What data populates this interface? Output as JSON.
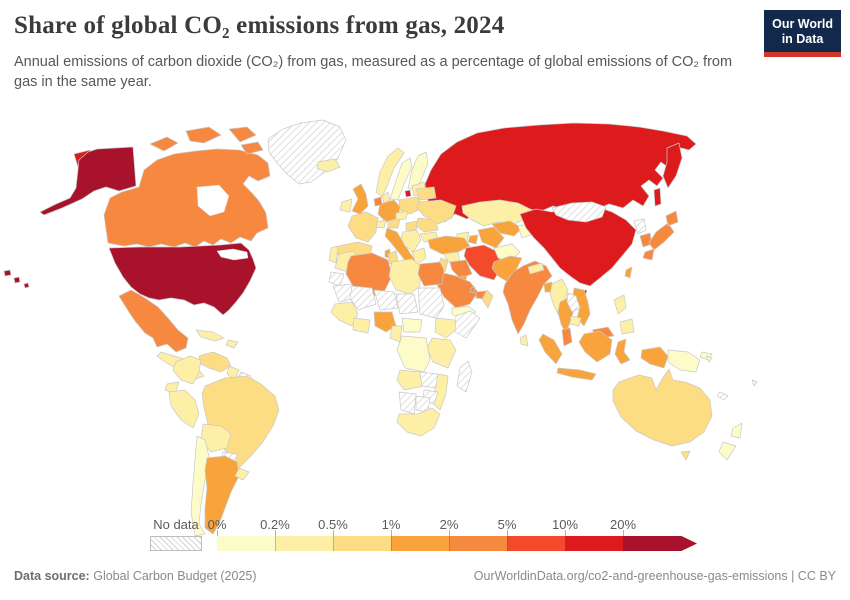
{
  "header": {
    "title": "Share of global CO₂ emissions from gas, 2024",
    "subtitle": "Annual emissions of carbon dioxide (CO₂) from gas, measured as a percentage of global emissions of CO₂ from gas in the same year.",
    "logo": {
      "line1": "Our World",
      "line2": "in Data"
    }
  },
  "legend": {
    "no_data_label": "No data",
    "tick_labels": [
      "0%",
      "0.2%",
      "0.5%",
      "1%",
      "2%",
      "5%",
      "10%",
      "20%"
    ]
  },
  "footer": {
    "source_label": "Data source:",
    "source_value": "Global Carbon Budget (2025)",
    "attribution": "OurWorldinData.org/co2-and-greenhouse-gas-emissions | CC BY"
  },
  "colors": {
    "logo_navy": "#12294b",
    "logo_red": "#d1352b",
    "title_text": "#3b3b3b",
    "subtitle_text": "#575757",
    "legend_text": "#5b5b5b",
    "footer_text": "#8a8a8a",
    "map_border": "#c9c9c9"
  },
  "chart_data": {
    "type": "choropleth-map",
    "title": "Share of global CO₂ emissions from gas, 2024",
    "year": 2024,
    "unit": "share of global CO₂ emissions from gas (%)",
    "legend_orientation": "horizontal",
    "bin_edges_labels": [
      "0%",
      "0.2%",
      "0.5%",
      "1%",
      "2%",
      "5%",
      "10%",
      "20%"
    ],
    "bin_ranges": [
      "0-0.2%",
      "0.2-0.5%",
      "0.5-1%",
      "1-2%",
      "2-5%",
      "5-10%",
      "10-20%",
      "20%+"
    ],
    "bin_colors": [
      "#fdfbc8",
      "#fdefa5",
      "#fddd83",
      "#f9a33c",
      "#f78840",
      "#f24a2b",
      "#de1b1c",
      "#a9122b"
    ],
    "no_data": {
      "label": "No data",
      "style": "hatched"
    },
    "country_bins": {
      "united-states": 7,
      "russia": 6,
      "china": 6,
      "iran": 5,
      "canada": 4,
      "mexico": 4,
      "saudi-arabia": 4,
      "algeria": 4,
      "egypt": 4,
      "iraq": 4,
      "uae": 4,
      "qatar": 4,
      "india": 4,
      "japan": 4,
      "south-korea": 4,
      "malaysia": 4,
      "netherlands": 4,
      "united-kingdom": 3,
      "germany": 3,
      "italy": 3,
      "turkey": 3,
      "argentina": 3,
      "nigeria": 3,
      "pakistan": 3,
      "thailand": 3,
      "vietnam": 3,
      "bangladesh": 3,
      "azerbaijan": 3,
      "uzbekistan": 3,
      "turkmenistan": 3,
      "kuwait": 3,
      "indonesia": 3,
      "taiwan": 3,
      "france": 2,
      "spain": 2,
      "poland": 2,
      "ukraine": 2,
      "belarus": 2,
      "romania": 2,
      "hungary": 2,
      "brazil": 2,
      "venezuela": 2,
      "australia": 2,
      "oman": 2,
      "tunisia": 2,
      "austria": 2,
      "israel-jordan": 2,
      "norway": 1,
      "ireland": 1,
      "portugal": 1,
      "denmark": 1,
      "baltics": 1,
      "czechia": 1,
      "switzerland": 1,
      "balkans": 1,
      "greece": 1,
      "bulgaria": 1,
      "iceland": 1,
      "colombia": 1,
      "peru": 1,
      "ecuador": 1,
      "bolivia": 1,
      "uruguay": 1,
      "cuba": 1,
      "hispaniola": 1,
      "central-america": 1,
      "myanmar": 1,
      "philippines": 1,
      "cambodia": 1,
      "sri-lanka": 1,
      "morocco": 1,
      "libya": 1,
      "west-africa": 1,
      "ghana-cote-divoire": 1,
      "cameroon": 1,
      "ethiopia": 1,
      "kenya-tanzania": 1,
      "angola": 1,
      "mozambique": 1,
      "south-africa": 1,
      "syria": 1,
      "georgia-armenia": 1,
      "guyana": 1,
      "nepal": 1,
      "kazakhstan": 1,
      "sweden": 0,
      "finland": 0,
      "afghanistan": 0,
      "chile": 0,
      "papua-new-guinea": 0,
      "new-zealand": 0,
      "yemen": 0,
      "dr-congo": 0,
      "central-african-republic": 0,
      "kyrgyzstan-tajikistan": 0,
      "solomon-islands": 0,
      "fiji": 0,
      "greenland": "nodata",
      "mongolia": "nodata",
      "north-korea": "nodata",
      "laos": "nodata",
      "paraguay": "nodata",
      "french-guiana": "nodata",
      "mauritania": "nodata",
      "mali": "nodata",
      "niger": "nodata",
      "chad": "nodata",
      "sudan": "nodata",
      "somalia": "nodata",
      "madagascar": "nodata",
      "zambia": "nodata",
      "zimbabwe": "nodata",
      "namibia": "nodata",
      "botswana": "nodata",
      "western-sahara": "nodata",
      "new-caledonia": "nodata"
    }
  }
}
